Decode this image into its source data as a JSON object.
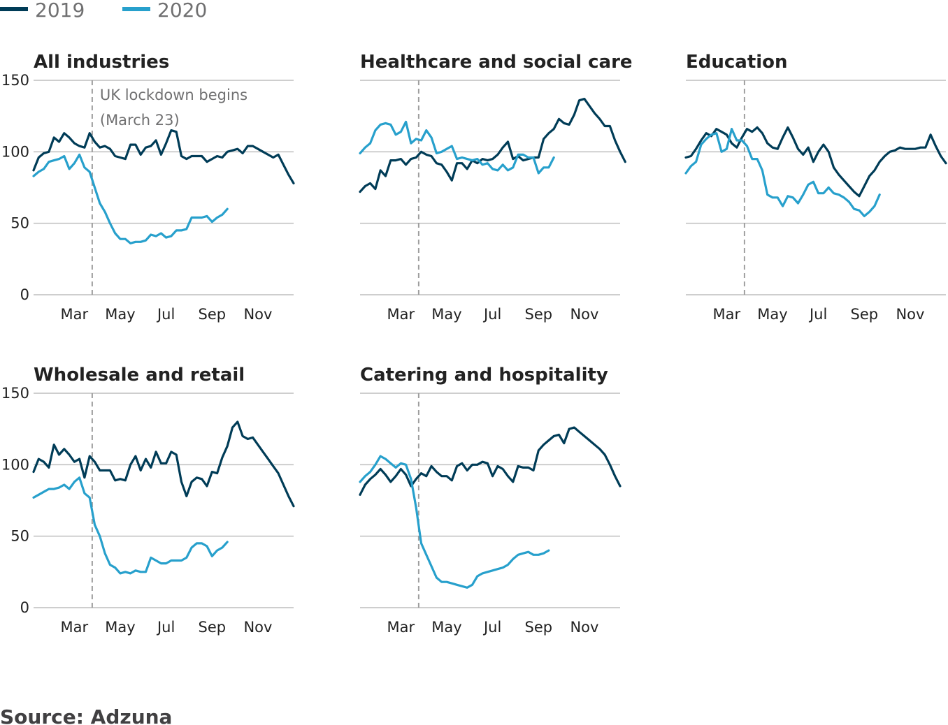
{
  "legend": [
    {
      "label": "2019",
      "color": "#003c57"
    },
    {
      "label": "2020",
      "color": "#27a0cc"
    }
  ],
  "source": "Source: Adzuna",
  "chart_data": {
    "type": "line",
    "subtype": "small-multiples",
    "ylim": [
      0,
      150
    ],
    "yticks": [
      0,
      50,
      100,
      150
    ],
    "x_range_week": [
      1,
      52
    ],
    "xticks": [
      {
        "label": "Mar",
        "week": 9
      },
      {
        "label": "May",
        "week": 18
      },
      {
        "label": "Jul",
        "week": 27
      },
      {
        "label": "Sep",
        "week": 36
      },
      {
        "label": "Nov",
        "week": 45
      }
    ],
    "lockdown": {
      "week": 12.5,
      "label_line1": "UK lockdown begins",
      "label_line2": "(March 23)"
    },
    "grid": true,
    "legend_position": "top-left",
    "panels": [
      {
        "title": "All industries",
        "series": [
          {
            "name": "2019",
            "color": "#003c57",
            "values": [
              87,
              96,
              99,
              100,
              110,
              107,
              113,
              110,
              106,
              104,
              103,
              113,
              107,
              103,
              104,
              102,
              97,
              96,
              95,
              105,
              105,
              98,
              103,
              104,
              108,
              98,
              106,
              115,
              114,
              97,
              95,
              97,
              97,
              97,
              93,
              95,
              97,
              96,
              100,
              101,
              102,
              99,
              104,
              104,
              102,
              100,
              98,
              96,
              98,
              91,
              84,
              78
            ]
          },
          {
            "name": "2020",
            "color": "#27a0cc",
            "values": [
              83,
              86,
              88,
              93,
              94,
              95,
              97,
              88,
              92,
              98,
              89,
              86,
              75,
              64,
              58,
              50,
              43,
              39,
              39,
              36,
              37,
              37,
              38,
              42,
              41,
              43,
              40,
              41,
              45,
              45,
              46,
              54,
              54,
              54,
              55,
              51,
              54,
              56,
              60
            ]
          }
        ]
      },
      {
        "title": "Healthcare and social care",
        "series": [
          {
            "name": "2019",
            "color": "#003c57",
            "values": [
              72,
              76,
              78,
              74,
              87,
              83,
              94,
              94,
              95,
              91,
              95,
              96,
              100,
              98,
              97,
              92,
              91,
              86,
              80,
              92,
              92,
              88,
              94,
              92,
              95,
              94,
              95,
              98,
              103,
              107,
              95,
              97,
              94,
              95,
              96,
              96,
              109,
              113,
              116,
              123,
              120,
              119,
              126,
              136,
              137,
              132,
              127,
              123,
              118,
              118,
              108,
              100,
              93
            ]
          },
          {
            "name": "2020",
            "color": "#27a0cc",
            "values": [
              99,
              103,
              106,
              115,
              119,
              120,
              119,
              112,
              114,
              121,
              106,
              109,
              108,
              115,
              110,
              99,
              100,
              102,
              104,
              95,
              96,
              95,
              94,
              95,
              91,
              92,
              88,
              87,
              91,
              87,
              89,
              98,
              98,
              96,
              96,
              85,
              89,
              89,
              96
            ]
          }
        ]
      },
      {
        "title": "Education",
        "series": [
          {
            "name": "2019",
            "color": "#003c57",
            "values": [
              96,
              97,
              102,
              108,
              113,
              111,
              116,
              114,
              112,
              106,
              103,
              110,
              116,
              114,
              117,
              113,
              106,
              103,
              102,
              110,
              117,
              110,
              102,
              98,
              103,
              93,
              100,
              105,
              100,
              89,
              84,
              80,
              76,
              72,
              69,
              76,
              83,
              87,
              93,
              97,
              100,
              101,
              103,
              102,
              102,
              102,
              103,
              103,
              112,
              104,
              97,
              92
            ]
          },
          {
            "name": "2020",
            "color": "#27a0cc",
            "values": [
              85,
              90,
              93,
              105,
              109,
              112,
              113,
              100,
              102,
              116,
              108,
              108,
              104,
              95,
              95,
              87,
              70,
              68,
              68,
              62,
              69,
              68,
              64,
              70,
              77,
              79,
              71,
              71,
              75,
              71,
              70,
              68,
              65,
              60,
              59,
              55,
              58,
              62,
              70
            ]
          }
        ]
      },
      {
        "title": "Wholesale and retail",
        "series": [
          {
            "name": "2019",
            "color": "#003c57",
            "values": [
              95,
              104,
              102,
              98,
              114,
              107,
              111,
              107,
              102,
              104,
              91,
              106,
              102,
              96,
              96,
              96,
              89,
              90,
              89,
              100,
              106,
              96,
              104,
              98,
              109,
              101,
              101,
              109,
              107,
              88,
              78,
              88,
              91,
              90,
              85,
              95,
              94,
              105,
              113,
              126,
              130,
              120,
              118,
              119,
              114,
              109,
              104,
              99,
              94,
              86,
              78,
              71
            ]
          },
          {
            "name": "2020",
            "color": "#27a0cc",
            "values": [
              77,
              79,
              81,
              83,
              83,
              84,
              86,
              83,
              88,
              91,
              80,
              77,
              58,
              50,
              38,
              30,
              28,
              24,
              25,
              24,
              26,
              25,
              25,
              35,
              33,
              31,
              31,
              33,
              33,
              33,
              35,
              42,
              45,
              45,
              43,
              36,
              40,
              42,
              46
            ]
          }
        ]
      },
      {
        "title": "Catering and hospitality",
        "series": [
          {
            "name": "2019",
            "color": "#003c57",
            "values": [
              79,
              86,
              90,
              93,
              97,
              93,
              88,
              92,
              97,
              93,
              85,
              90,
              94,
              92,
              99,
              95,
              92,
              92,
              89,
              99,
              101,
              96,
              100,
              100,
              102,
              101,
              92,
              99,
              97,
              92,
              88,
              99,
              98,
              98,
              96,
              110,
              114,
              117,
              120,
              121,
              115,
              125,
              126,
              123,
              120,
              117,
              114,
              111,
              107,
              100,
              92,
              85
            ]
          },
          {
            "name": "2020",
            "color": "#27a0cc",
            "values": [
              88,
              92,
              95,
              100,
              106,
              104,
              101,
              98,
              101,
              100,
              90,
              70,
              45,
              37,
              29,
              21,
              18,
              18,
              17,
              16,
              15,
              14,
              16,
              22,
              24,
              25,
              26,
              27,
              28,
              30,
              34,
              37,
              38,
              39,
              37,
              37,
              38,
              40
            ]
          }
        ]
      }
    ]
  }
}
